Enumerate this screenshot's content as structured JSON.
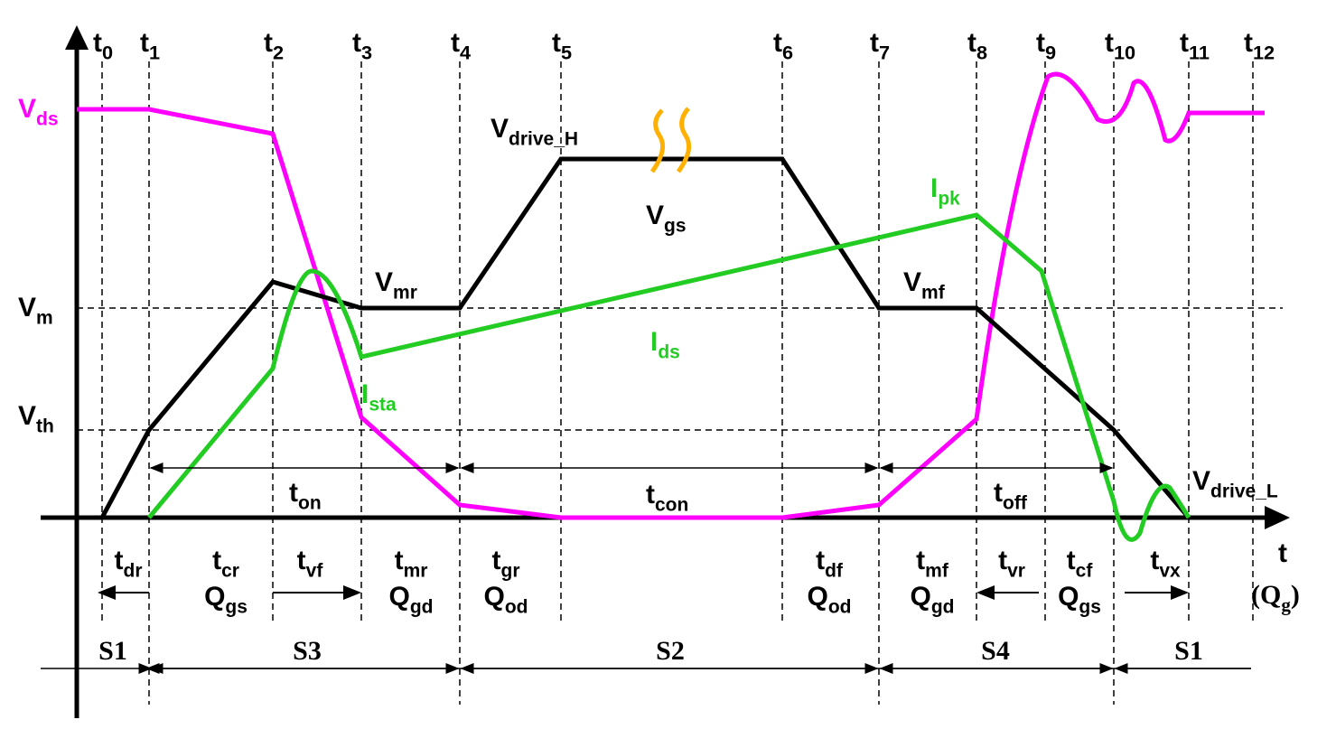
{
  "time_markers": [
    {
      "main": "t",
      "sub": "0"
    },
    {
      "main": "t",
      "sub": "1"
    },
    {
      "main": "t",
      "sub": "2"
    },
    {
      "main": "t",
      "sub": "3"
    },
    {
      "main": "t",
      "sub": "4"
    },
    {
      "main": "t",
      "sub": "5"
    },
    {
      "main": "t",
      "sub": "6"
    },
    {
      "main": "t",
      "sub": "7"
    },
    {
      "main": "t",
      "sub": "8"
    },
    {
      "main": "t",
      "sub": "9"
    },
    {
      "main": "t",
      "sub": "10"
    },
    {
      "main": "t",
      "sub": "11"
    },
    {
      "main": "t",
      "sub": "12"
    }
  ],
  "level_labels": [
    {
      "main": "V",
      "sub": "ds"
    },
    {
      "main": "V",
      "sub": "m"
    },
    {
      "main": "V",
      "sub": "th"
    }
  ],
  "curve_labels": [
    {
      "main": "V",
      "sub": "drive_H"
    },
    {
      "main": "V",
      "sub": "gs"
    },
    {
      "main": "V",
      "sub": "mr"
    },
    {
      "main": "V",
      "sub": "mf"
    },
    {
      "main": "I",
      "sub": "pk"
    },
    {
      "main": "I",
      "sub": "ds"
    },
    {
      "main": "I",
      "sub": "sta"
    },
    {
      "main": "V",
      "sub": "drive_L"
    }
  ],
  "intervals": [
    {
      "main": "t",
      "sub": "on"
    },
    {
      "main": "t",
      "sub": "con"
    },
    {
      "main": "t",
      "sub": "off"
    }
  ],
  "phase_labels": [
    {
      "time": {
        "main": "t",
        "sub": "dr"
      }
    },
    {
      "time": {
        "main": "t",
        "sub": "cr"
      },
      "charge": {
        "main": "Q",
        "sub": "gs"
      }
    },
    {
      "time": {
        "main": "t",
        "sub": "vf"
      }
    },
    {
      "time": {
        "main": "t",
        "sub": "mr"
      },
      "charge": {
        "main": "Q",
        "sub": "gd"
      }
    },
    {
      "time": {
        "main": "t",
        "sub": "gr"
      },
      "charge": {
        "main": "Q",
        "sub": "od"
      }
    },
    {
      "time": {
        "main": "t",
        "sub": "df"
      },
      "charge": {
        "main": "Q",
        "sub": "od"
      }
    },
    {
      "time": {
        "main": "t",
        "sub": "mf"
      },
      "charge": {
        "main": "Q",
        "sub": "gd"
      }
    },
    {
      "time": {
        "main": "t",
        "sub": "vr"
      }
    },
    {
      "time": {
        "main": "t",
        "sub": "cf"
      },
      "charge": {
        "main": "Q",
        "sub": "gs"
      }
    },
    {
      "time": {
        "main": "t",
        "sub": "vx"
      }
    }
  ],
  "axis_label": {
    "time": {
      "main": "t"
    },
    "charge": {
      "main": "(Q",
      "sub": "g",
      "tail": ")"
    }
  },
  "states": [
    "S1",
    "S3",
    "S2",
    "S4",
    "S1"
  ]
}
